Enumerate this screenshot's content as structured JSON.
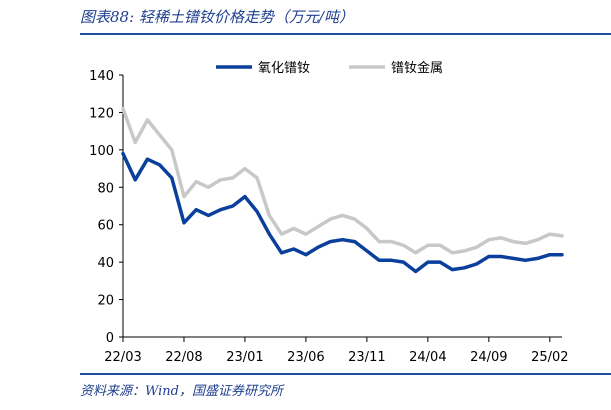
{
  "header": {
    "title": "图表88: 轻稀土镨钕价格走势（万元/吨）"
  },
  "footer": {
    "source": "资料来源：Wind，国盛证券研究所"
  },
  "colors": {
    "accent": "#1f4e9c",
    "series1": "#0b3f9c",
    "series2": "#c8c8c8"
  },
  "chart_data": {
    "type": "line",
    "title": "轻稀土镨钕价格走势（万元/吨）",
    "xlabel": "",
    "ylabel": "",
    "ylim": [
      0,
      140
    ],
    "yticks": [
      0,
      20,
      40,
      60,
      80,
      100,
      120,
      140
    ],
    "xticks": [
      "22/03",
      "22/08",
      "23/01",
      "23/06",
      "23/11",
      "24/04",
      "24/09",
      "25/02"
    ],
    "x_months": [
      "22/03",
      "22/04",
      "22/05",
      "22/06",
      "22/07",
      "22/08",
      "22/09",
      "22/10",
      "22/11",
      "22/12",
      "23/01",
      "23/02",
      "23/03",
      "23/04",
      "23/05",
      "23/06",
      "23/07",
      "23/08",
      "23/09",
      "23/10",
      "23/11",
      "23/12",
      "24/01",
      "24/02",
      "24/03",
      "24/04",
      "24/05",
      "24/06",
      "24/07",
      "24/08",
      "24/09",
      "24/10",
      "24/11",
      "24/12",
      "25/01",
      "25/02",
      "25/03"
    ],
    "series": [
      {
        "name": "氧化镨钕",
        "values": [
          98,
          84,
          95,
          92,
          85,
          61,
          68,
          65,
          68,
          70,
          75,
          67,
          55,
          45,
          47,
          44,
          48,
          51,
          52,
          51,
          46,
          41,
          41,
          40,
          35,
          40,
          40,
          36,
          37,
          39,
          43,
          43,
          42,
          41,
          42,
          44,
          44
        ]
      },
      {
        "name": "镨钕金属",
        "values": [
          122,
          104,
          116,
          108,
          100,
          75,
          83,
          80,
          84,
          85,
          90,
          85,
          65,
          55,
          58,
          55,
          59,
          63,
          65,
          63,
          58,
          51,
          51,
          49,
          45,
          49,
          49,
          45,
          46,
          48,
          52,
          53,
          51,
          50,
          52,
          55,
          54
        ]
      }
    ],
    "legend": "top-center"
  }
}
